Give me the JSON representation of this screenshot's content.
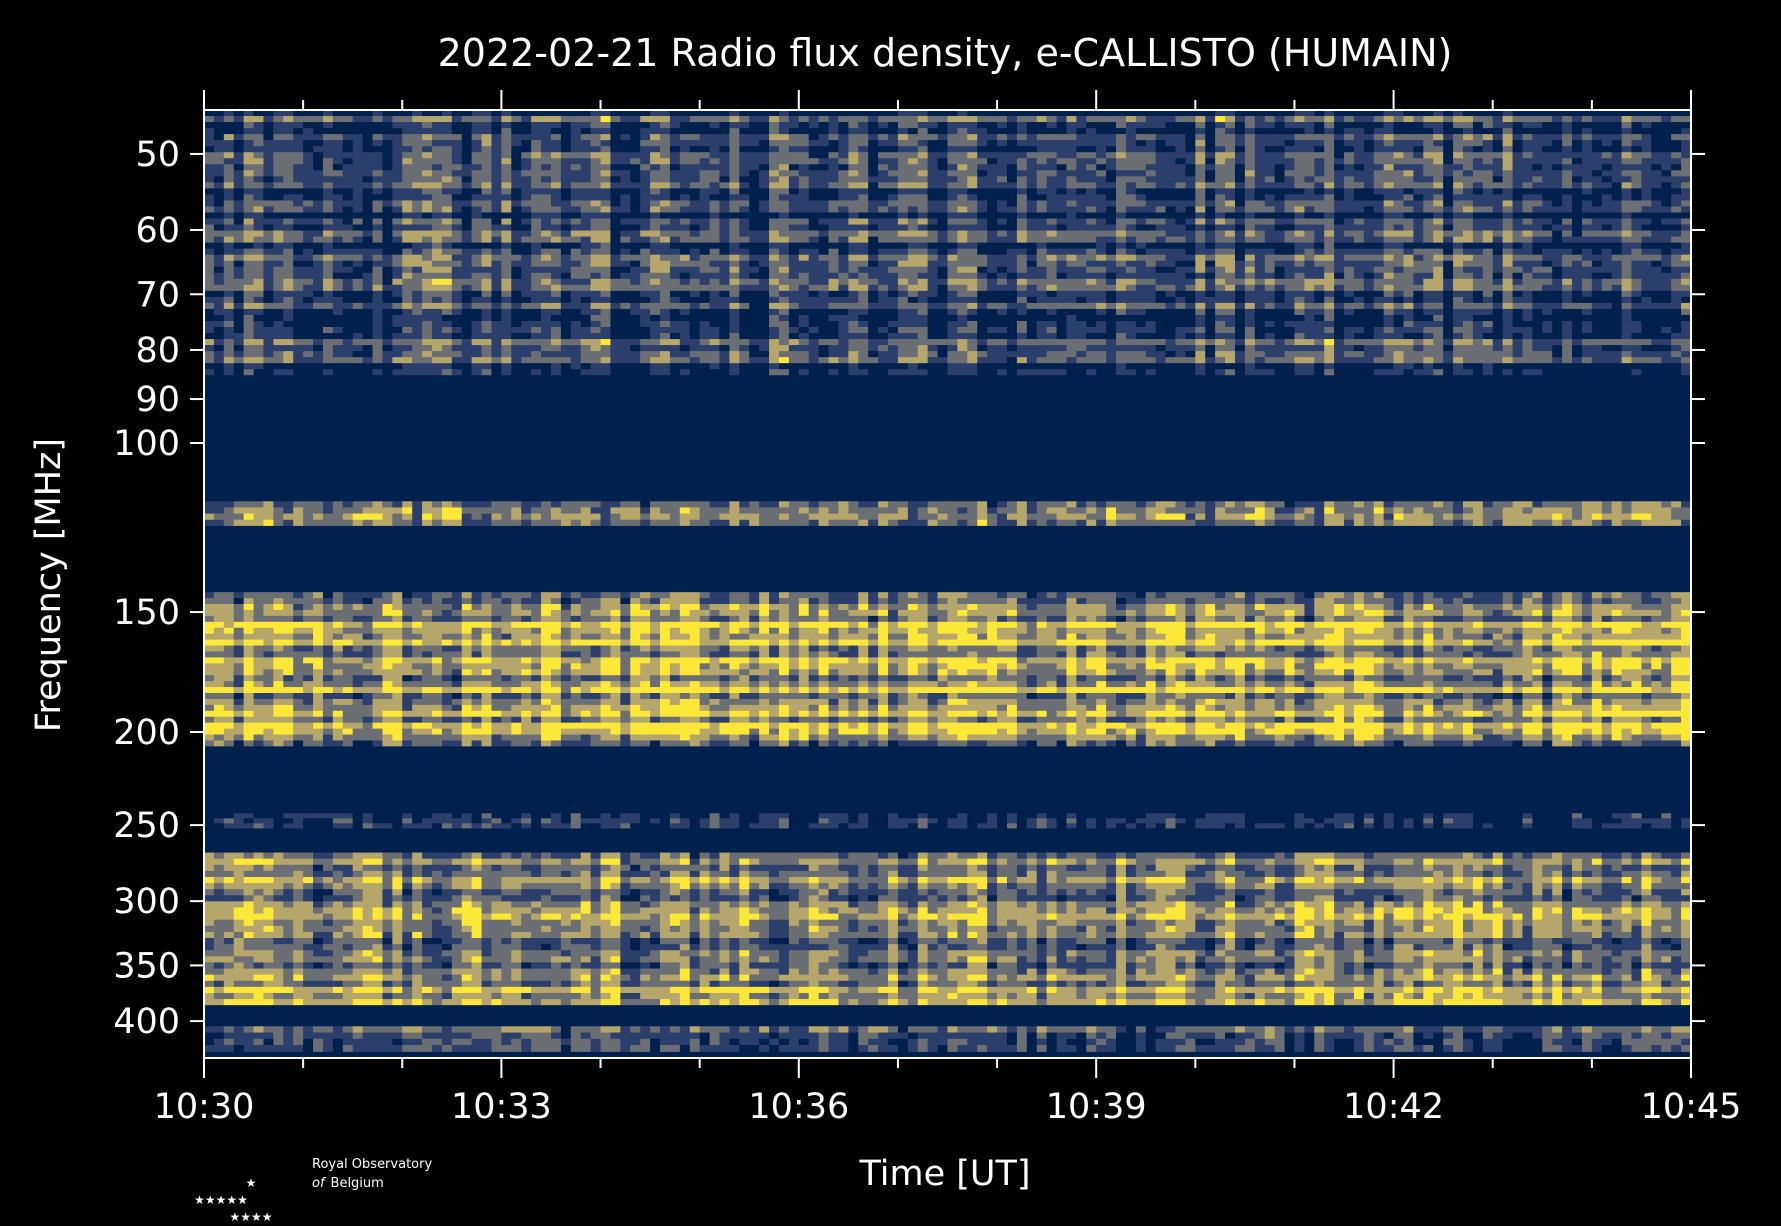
{
  "chart_data": {
    "type": "heatmap",
    "title": "2022-02-21 Radio flux density, e-CALLISTO (HUMAIN)",
    "xlabel": "Time [UT]",
    "ylabel": "Frequency [MHz]",
    "x_range": [
      "10:30",
      "10:45"
    ],
    "x_ticks": [
      "10:30",
      "10:33",
      "10:36",
      "10:39",
      "10:42",
      "10:45"
    ],
    "y_scale": "log",
    "y_range": [
      45,
      437
    ],
    "y_ticks": [
      50,
      60,
      70,
      80,
      90,
      100,
      150,
      200,
      250,
      300,
      350,
      400
    ],
    "colormap": [
      "#00204d",
      "#2c3e6b",
      "#6b6f73",
      "#b5a66b",
      "#fde838"
    ],
    "bands": [
      {
        "f_low": 45,
        "f_high": 85,
        "level": 0.25
      },
      {
        "f_low": 85,
        "f_high": 115,
        "level": 0.0
      },
      {
        "f_low": 115,
        "f_high": 122,
        "level": 0.35
      },
      {
        "f_low": 122,
        "f_high": 143,
        "level": 0.0
      },
      {
        "f_low": 143,
        "f_high": 207,
        "level": 0.7
      },
      {
        "f_low": 207,
        "f_high": 243,
        "level": 0.0
      },
      {
        "f_low": 243,
        "f_high": 252,
        "level": 0.35
      },
      {
        "f_low": 252,
        "f_high": 267,
        "level": 0.0
      },
      {
        "f_low": 267,
        "f_high": 385,
        "level": 0.6
      },
      {
        "f_low": 385,
        "f_high": 405,
        "level": 0.0
      },
      {
        "f_low": 405,
        "f_high": 430,
        "level": 0.3
      }
    ],
    "grid": false
  },
  "logo": {
    "line1": "Royal Observatory",
    "line2_italic": "of",
    "line2": "Belgium"
  }
}
